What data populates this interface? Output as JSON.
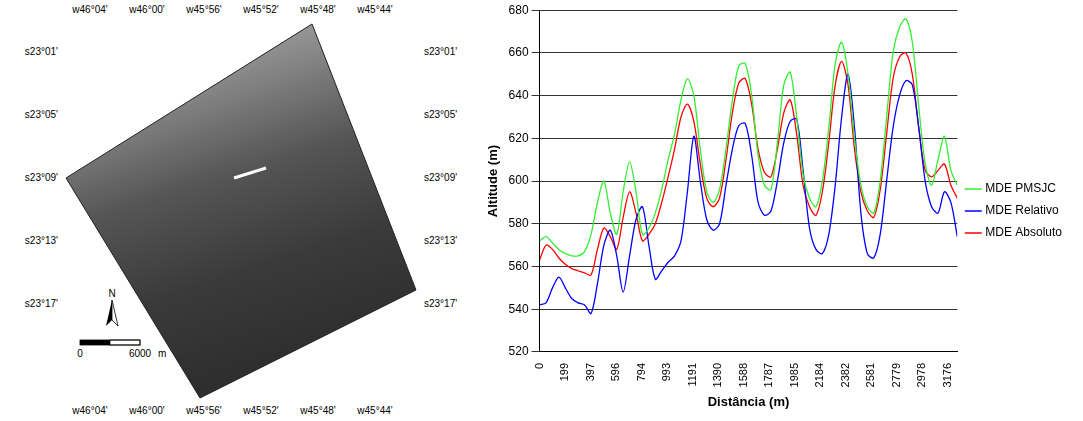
{
  "chart_data": {
    "type": "line",
    "x_label": "Distância (m)",
    "y_label": "Altitude (m)",
    "x": [
      0,
      50,
      100,
      150,
      200,
      250,
      300,
      350,
      400,
      450,
      500,
      550,
      600,
      650,
      700,
      750,
      800,
      850,
      900,
      950,
      1000,
      1050,
      1100,
      1150,
      1200,
      1250,
      1300,
      1350,
      1400,
      1450,
      1500,
      1550,
      1600,
      1650,
      1700,
      1750,
      1800,
      1850,
      1900,
      1950,
      2000,
      2050,
      2100,
      2150,
      2200,
      2250,
      2300,
      2350,
      2400,
      2450,
      2500,
      2550,
      2600,
      2650,
      2700,
      2750,
      2800,
      2850,
      2900,
      2950,
      3000,
      3050,
      3100,
      3150,
      3200,
      3250
    ],
    "series": [
      {
        "name": "MDE PMSJC",
        "color": "#33ee33",
        "values": [
          572,
          574,
          571,
          568,
          566,
          565,
          565,
          567,
          575,
          590,
          600,
          585,
          575,
          595,
          609,
          595,
          575,
          578,
          585,
          596,
          610,
          622,
          638,
          648,
          640,
          615,
          595,
          590,
          596,
          615,
          638,
          654,
          655,
          640,
          612,
          598,
          596,
          618,
          645,
          651,
          630,
          603,
          592,
          588,
          600,
          625,
          655,
          665,
          650,
          620,
          598,
          588,
          585,
          600,
          630,
          660,
          672,
          676,
          665,
          635,
          608,
          598,
          610,
          621,
          605,
          598
        ]
      },
      {
        "name": "MDE Relativo",
        "color": "#0000ff",
        "values": [
          542,
          543,
          550,
          555,
          550,
          545,
          543,
          542,
          538,
          552,
          570,
          577,
          565,
          548,
          565,
          582,
          588,
          570,
          554,
          558,
          562,
          565,
          572,
          595,
          621,
          600,
          582,
          577,
          580,
          598,
          615,
          626,
          627,
          612,
          590,
          584,
          586,
          600,
          618,
          628,
          629,
          605,
          578,
          568,
          566,
          575,
          598,
          630,
          650,
          625,
          585,
          566,
          564,
          575,
          600,
          625,
          640,
          647,
          645,
          625,
          600,
          588,
          585,
          595,
          590,
          574
        ]
      },
      {
        "name": "MDE Absoluto",
        "color": "#ff0000",
        "values": [
          563,
          570,
          568,
          564,
          561,
          559,
          558,
          557,
          556,
          568,
          578,
          574,
          568,
          583,
          595,
          585,
          572,
          575,
          580,
          590,
          602,
          615,
          630,
          636,
          628,
          608,
          592,
          588,
          592,
          610,
          632,
          646,
          648,
          636,
          615,
          604,
          602,
          615,
          632,
          638,
          622,
          598,
          588,
          584,
          595,
          618,
          645,
          656,
          645,
          615,
          595,
          586,
          583,
          596,
          622,
          648,
          658,
          660,
          650,
          625,
          605,
          602,
          605,
          608,
          598,
          592
        ]
      }
    ],
    "xlim": [
      0,
      3250
    ],
    "xticks": [
      0,
      199,
      397,
      596,
      794,
      993,
      1191,
      1390,
      1588,
      1787,
      1985,
      2184,
      2382,
      2581,
      2779,
      2978,
      3176
    ],
    "ylim": [
      520,
      680
    ],
    "yticks": [
      520,
      540,
      560,
      580,
      600,
      620,
      640,
      660,
      680
    ],
    "grid": true,
    "legend": "right",
    "line_style": "solid",
    "marker": "none"
  },
  "map": {
    "longitudes": [
      "w46°04'",
      "w46°00'",
      "w45°56'",
      "w45°52'",
      "w45°48'",
      "w45°44'"
    ],
    "latitudes": [
      "s23°01'",
      "s23°05'",
      "s23°09'",
      "s23°13'",
      "s23°17'"
    ],
    "north": "N",
    "scale_values": [
      0,
      6000
    ],
    "scale_unit": "m"
  }
}
